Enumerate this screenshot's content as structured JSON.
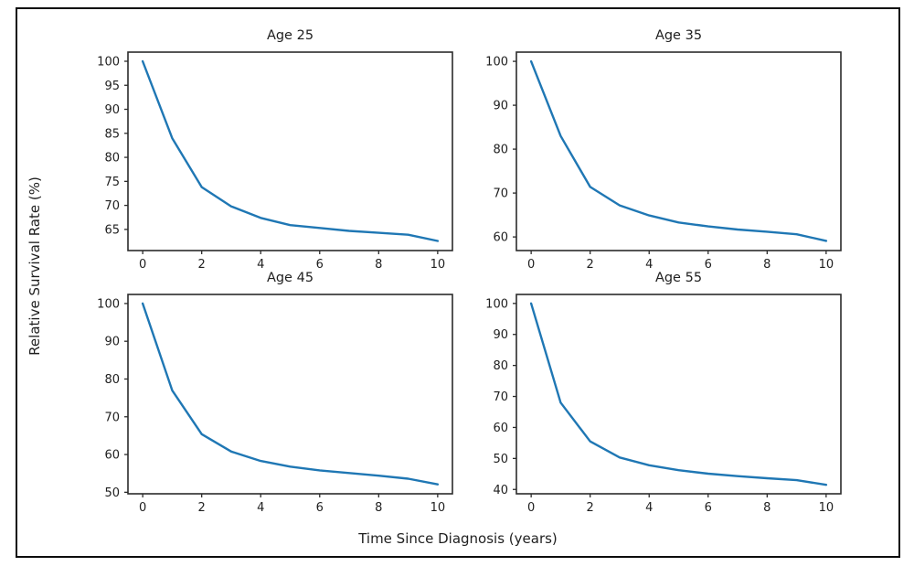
{
  "figure": {
    "xlabel": "Time Since Diagnosis (years)",
    "ylabel": "Relative Survival Rate (%)",
    "line_color": "#1f77b4",
    "spine_color": "#2b2b2b",
    "text_color": "#1f1f1f",
    "background": "#ffffff",
    "grid": false,
    "legend": false
  },
  "chart_data": [
    {
      "type": "line",
      "title": "Age 25",
      "x": [
        0,
        1,
        2,
        3,
        4,
        5,
        6,
        7,
        8,
        9,
        10
      ],
      "y": [
        100,
        84,
        73.8,
        69.8,
        67.4,
        65.9,
        65.3,
        64.7,
        64.3,
        63.9,
        62.6
      ],
      "xticks": [
        0,
        2,
        4,
        6,
        8,
        10
      ],
      "yticks": [
        65,
        70,
        75,
        80,
        85,
        90,
        95,
        100
      ],
      "xlim": [
        -0.5,
        10.5
      ],
      "ylim": [
        60.6,
        101.9
      ]
    },
    {
      "type": "line",
      "title": "Age 35",
      "x": [
        0,
        1,
        2,
        3,
        4,
        5,
        6,
        7,
        8,
        9,
        10
      ],
      "y": [
        100,
        83,
        71.4,
        67.2,
        64.9,
        63.3,
        62.4,
        61.7,
        61.2,
        60.6,
        59.1
      ],
      "xticks": [
        0,
        2,
        4,
        6,
        8,
        10
      ],
      "yticks": [
        60,
        70,
        80,
        90,
        100
      ],
      "xlim": [
        -0.5,
        10.5
      ],
      "ylim": [
        56.9,
        102.1
      ]
    },
    {
      "type": "line",
      "title": "Age 45",
      "x": [
        0,
        1,
        2,
        3,
        4,
        5,
        6,
        7,
        8,
        9,
        10
      ],
      "y": [
        100,
        77,
        65.4,
        60.8,
        58.3,
        56.8,
        55.8,
        55.1,
        54.4,
        53.6,
        52.1
      ],
      "xticks": [
        0,
        2,
        4,
        6,
        8,
        10
      ],
      "yticks": [
        50,
        60,
        70,
        80,
        90,
        100
      ],
      "xlim": [
        -0.5,
        10.5
      ],
      "ylim": [
        49.6,
        102.4
      ]
    },
    {
      "type": "line",
      "title": "Age 55",
      "x": [
        0,
        1,
        2,
        3,
        4,
        5,
        6,
        7,
        8,
        9,
        10
      ],
      "y": [
        100,
        68,
        55.5,
        50.3,
        47.8,
        46.2,
        45.1,
        44.3,
        43.6,
        43.0,
        41.5
      ],
      "xticks": [
        0,
        2,
        4,
        6,
        8,
        10
      ],
      "yticks": [
        40,
        50,
        60,
        70,
        80,
        90,
        100
      ],
      "xlim": [
        -0.5,
        10.5
      ],
      "ylim": [
        38.6,
        102.9
      ]
    }
  ]
}
